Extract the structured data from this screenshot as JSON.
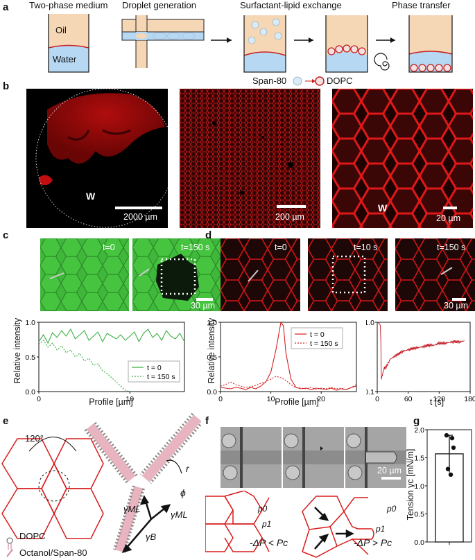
{
  "panel_labels": {
    "a": "a",
    "b": "b",
    "c": "c",
    "d": "d",
    "e": "e",
    "f": "f",
    "g": "g"
  },
  "panel_a": {
    "titles": [
      "Two-phase medium",
      "Droplet generation",
      "Surfactant-lipid exchange",
      "Phase transfer"
    ],
    "oil_label": "Oil",
    "water_label": "Water",
    "legend_span": "Span-80",
    "legend_dopc": "DOPC"
  },
  "panel_b": {
    "images": [
      {
        "w_label": "W",
        "scale_bar": "2000 µm"
      },
      {
        "w_label": "",
        "scale_bar": "200 µm"
      },
      {
        "w_label": "W",
        "scale_bar": "20 µm"
      }
    ]
  },
  "panel_c": {
    "images": [
      {
        "time": "t=0",
        "scale_bar": ""
      },
      {
        "time": "t=150 s",
        "scale_bar": "30 µm"
      }
    ],
    "ylabel": "Relative intensity",
    "xlabel": "Profile [µm]",
    "legend": [
      "t = 0",
      "t = 150 s"
    ],
    "yticks": [
      "0.0",
      "0.5",
      "1.0"
    ],
    "xticks": [
      "0",
      "10"
    ]
  },
  "panel_d": {
    "images": [
      {
        "time": "t=0",
        "scale_bar": ""
      },
      {
        "time": "t=10 s",
        "scale_bar": ""
      },
      {
        "time": "t=150 s",
        "scale_bar": "30 µm"
      }
    ],
    "ylabel": "Relative intensity",
    "xlabel": "Profile [µm]",
    "legend": [
      "t = 0",
      "t = 150 s"
    ],
    "yticks": [
      "0.0",
      "0.5",
      "1.0"
    ],
    "xticks": [
      "0",
      "10",
      "20"
    ],
    "right_xlabel": "t [s]",
    "right_xticks": [
      "0",
      "60",
      "120",
      "180"
    ],
    "right_yticks": [
      "0.1",
      "1.0"
    ]
  },
  "panel_e": {
    "angle": "120°",
    "r": "r",
    "phi": "ϕ",
    "gamma_ml": "γML",
    "gamma_ml2": "γML",
    "gamma_b": "γB",
    "legend_dopc": "DOPC",
    "legend_octanol": "Octanol/Span-80"
  },
  "panel_f": {
    "scale_bar": "20 µm",
    "p0": "p0",
    "p1": "p1",
    "p0b": "p0",
    "p1b": "p1",
    "cond_left": "-ΔP < Pc",
    "cond_right": "-ΔP > Pc"
  },
  "panel_g": {
    "ylabel": "Tension γc [mN/m]",
    "yticks": [
      "0.0",
      "0.5",
      "1.0",
      "1.5",
      "2.0"
    ]
  },
  "chart_data": [
    {
      "type": "line",
      "title": "",
      "xlabel": "Profile [µm]",
      "ylabel": "Relative intensity",
      "xlim": [
        0,
        16
      ],
      "ylim": [
        0,
        1
      ],
      "series": [
        {
          "name": "t = 0",
          "color": "#3cb043",
          "style": "solid",
          "x": [
            0,
            0.5,
            1,
            1.5,
            2,
            2.5,
            3,
            3.5,
            4,
            4.5,
            5,
            5.5,
            6,
            6.5,
            7,
            7.5,
            8,
            8.5,
            9,
            9.5,
            10,
            10.5,
            11,
            11.5,
            12,
            12.5,
            13,
            13.5,
            14,
            14.5,
            15,
            15.5,
            16
          ],
          "y": [
            0.72,
            0.82,
            0.7,
            0.85,
            0.78,
            0.88,
            0.8,
            0.9,
            0.76,
            0.82,
            0.88,
            0.74,
            0.8,
            0.86,
            0.72,
            0.84,
            0.8,
            0.76,
            0.82,
            0.74,
            0.8,
            0.86,
            0.72,
            0.84,
            0.9,
            0.78,
            0.84,
            0.74,
            0.88,
            0.8,
            0.76,
            0.84,
            0.72
          ]
        },
        {
          "name": "t = 150 s",
          "color": "#3cb043",
          "style": "dashed",
          "x": [
            0,
            0.5,
            1,
            1.5,
            2,
            2.5,
            3,
            3.5,
            4,
            4.5,
            5,
            5.5,
            6,
            6.5,
            7,
            7.5,
            8,
            8.5,
            9,
            9.5,
            10
          ],
          "y": [
            0.68,
            0.74,
            0.64,
            0.7,
            0.6,
            0.66,
            0.56,
            0.6,
            0.5,
            0.55,
            0.44,
            0.48,
            0.38,
            0.4,
            0.3,
            0.26,
            0.2,
            0.14,
            0.08,
            0.02,
            0.0
          ]
        }
      ]
    },
    {
      "type": "line",
      "title": "",
      "xlabel": "Profile [µm]",
      "ylabel": "Relative intensity",
      "xlim": [
        0,
        27
      ],
      "ylim": [
        0,
        1
      ],
      "series": [
        {
          "name": "t = 0",
          "color": "#d62020",
          "style": "solid",
          "x": [
            0,
            1,
            2,
            3,
            4,
            5,
            6,
            7,
            8,
            9,
            10,
            11,
            12,
            12.5,
            13,
            14,
            15,
            16,
            17,
            18,
            19,
            20,
            21,
            22,
            23,
            24,
            25,
            26,
            27
          ],
          "y": [
            0.06,
            0.05,
            0.04,
            0.06,
            0.05,
            0.03,
            0.06,
            0.04,
            0.08,
            0.14,
            0.28,
            0.6,
            1.0,
            0.95,
            0.55,
            0.18,
            0.06,
            0.04,
            0.05,
            0.03,
            0.05,
            0.04,
            0.03,
            0.05,
            0.02,
            0.04,
            0.03,
            0.06,
            0.08
          ]
        },
        {
          "name": "t = 150 s",
          "color": "#d62020",
          "style": "dashed",
          "x": [
            0,
            1,
            2,
            3,
            4,
            5,
            6,
            7,
            8,
            9,
            10,
            11,
            12,
            13,
            14,
            15,
            16,
            17,
            18,
            19,
            20,
            21,
            22,
            23,
            24,
            25,
            26,
            27
          ],
          "y": [
            0.08,
            0.1,
            0.14,
            0.1,
            0.08,
            0.06,
            0.07,
            0.09,
            0.12,
            0.14,
            0.18,
            0.22,
            0.2,
            0.16,
            0.1,
            0.06,
            0.05,
            0.04,
            0.06,
            0.03,
            0.05,
            0.04,
            0.06,
            0.04,
            0.05,
            0.03,
            0.06,
            0.1
          ]
        }
      ]
    },
    {
      "type": "line",
      "title": "",
      "xlabel": "t [s]",
      "ylabel": "",
      "xlim": [
        0,
        180
      ],
      "ylim": [
        0.1,
        1.0
      ],
      "series": [
        {
          "name": "",
          "color": "#c0141c",
          "x": [
            0,
            2,
            4,
            6,
            8,
            10,
            12,
            15,
            20,
            25,
            30,
            40,
            50,
            60,
            70,
            80,
            90,
            100,
            110,
            120,
            130,
            140,
            150,
            160,
            170
          ],
          "y": [
            1.0,
            0.98,
            0.96,
            0.9,
            0.15,
            0.18,
            0.2,
            0.22,
            0.25,
            0.3,
            0.32,
            0.36,
            0.4,
            0.42,
            0.44,
            0.45,
            0.46,
            0.48,
            0.47,
            0.5,
            0.49,
            0.5,
            0.51,
            0.5,
            0.52
          ]
        }
      ]
    },
    {
      "type": "bar",
      "title": "",
      "xlabel": "",
      "ylabel": "Tension γc [mN/m]",
      "ylim": [
        0,
        2.0
      ],
      "categories": [
        ""
      ],
      "values": [
        1.57
      ],
      "error": [
        0.33
      ],
      "points": [
        1.9,
        1.85,
        1.68,
        1.3,
        1.2
      ]
    }
  ]
}
